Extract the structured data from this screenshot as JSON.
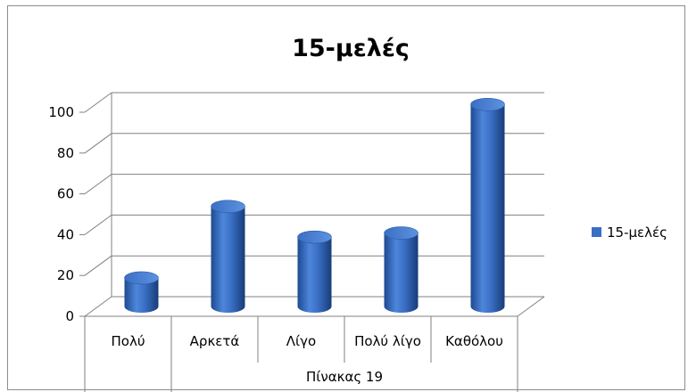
{
  "chart_data": {
    "type": "bar",
    "title": "15-μελές",
    "categories": [
      "Πολύ",
      "Αρκετά",
      "Λίγο",
      "Πολύ λίγο",
      "Καθόλου"
    ],
    "group_label": "Πίνακας 19",
    "series": [
      {
        "name": "15-μελές",
        "values": [
          14,
          49,
          34,
          36,
          99
        ]
      }
    ],
    "ylim": [
      0,
      100
    ],
    "yticks": [
      0,
      20,
      40,
      60,
      80,
      100
    ],
    "grid": true,
    "legend_position": "right",
    "bar_color": "#3a6fc4"
  }
}
